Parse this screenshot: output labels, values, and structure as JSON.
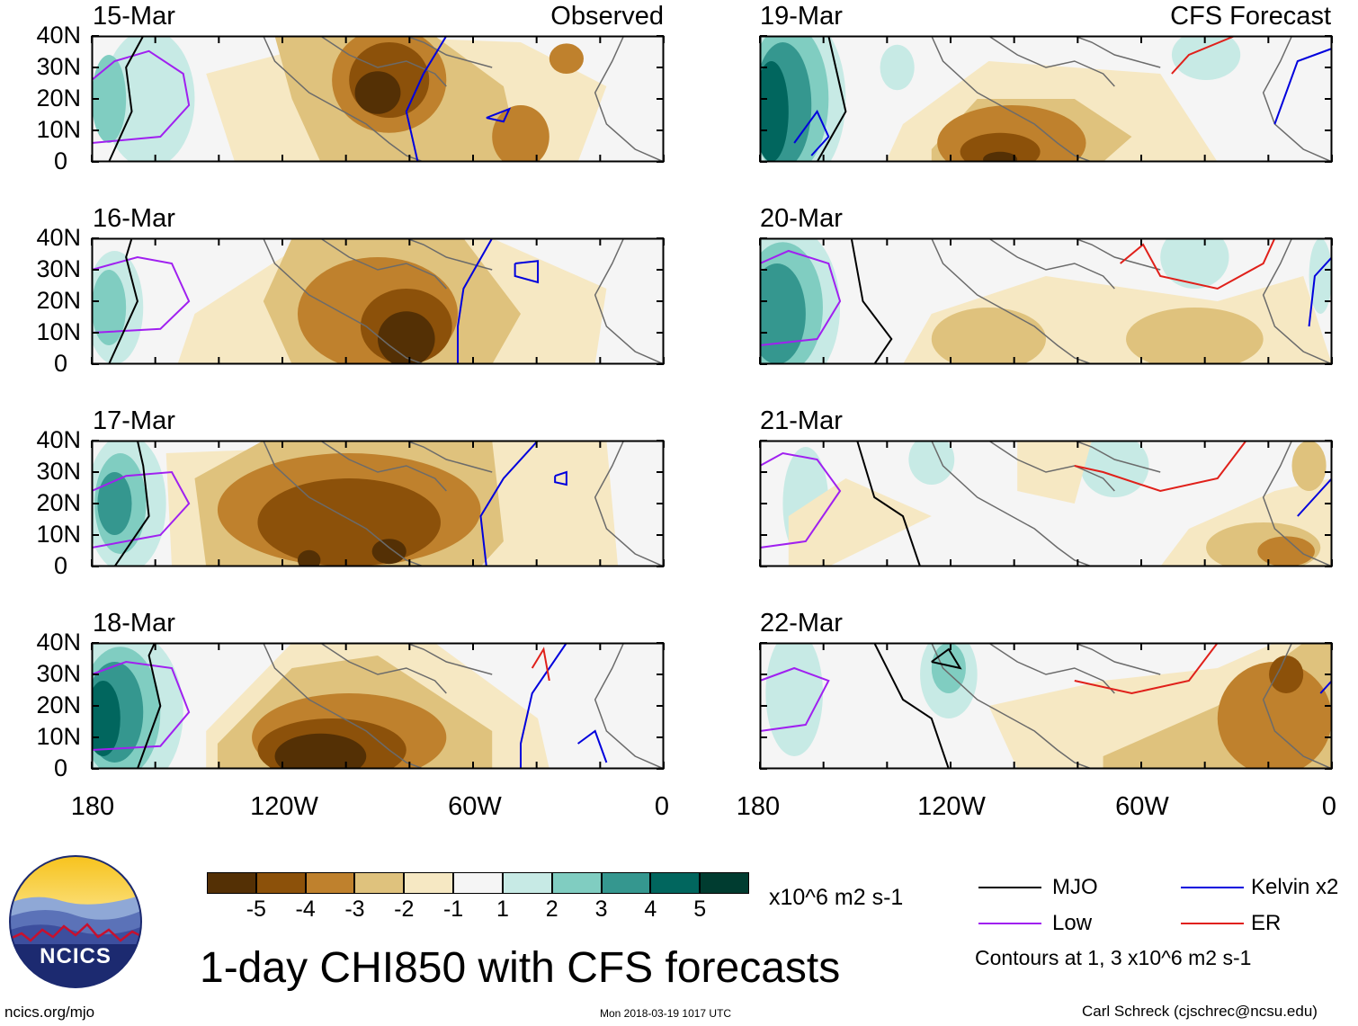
{
  "title": "1-day CHI850 with CFS forecasts",
  "columns": {
    "left_title": "Observed",
    "right_title": "CFS Forecast"
  },
  "panels": [
    {
      "id": "p0",
      "date": "15-Mar",
      "column": "observed"
    },
    {
      "id": "p1",
      "date": "16-Mar",
      "column": "observed"
    },
    {
      "id": "p2",
      "date": "17-Mar",
      "column": "observed"
    },
    {
      "id": "p3",
      "date": "18-Mar",
      "column": "observed"
    },
    {
      "id": "p4",
      "date": "19-Mar",
      "column": "forecast"
    },
    {
      "id": "p5",
      "date": "20-Mar",
      "column": "forecast"
    },
    {
      "id": "p6",
      "date": "21-Mar",
      "column": "forecast"
    },
    {
      "id": "p7",
      "date": "22-Mar",
      "column": "forecast"
    }
  ],
  "axes": {
    "y_ticks": [
      "40N",
      "30N",
      "20N",
      "10N",
      "0"
    ],
    "x_ticks": [
      "180",
      "120W",
      "60W",
      "0"
    ],
    "lat_range": [
      0,
      40
    ],
    "lon_range": [
      -180,
      0
    ]
  },
  "colorbar": {
    "labels": [
      "-5",
      "-4",
      "-3",
      "-2",
      "-1",
      "1",
      "2",
      "3",
      "4",
      "5"
    ],
    "colors": [
      "#543005",
      "#8c510a",
      "#bf812d",
      "#dfc27d",
      "#f6e8c3",
      "#f5f5f5",
      "#c7eae5",
      "#80cdc1",
      "#35978f",
      "#01665e",
      "#003c30"
    ],
    "units": "x10^6 m2 s-1"
  },
  "legend": {
    "items": [
      {
        "label": "MJO",
        "color": "#000000"
      },
      {
        "label": "Kelvin x2",
        "color": "#0000dd"
      },
      {
        "label": "Low",
        "color": "#a020f0"
      },
      {
        "label": "ER",
        "color": "#e0201a"
      }
    ],
    "note": "Contours at 1, 3 x10^6 m2 s-1"
  },
  "footer": {
    "url": "ncics.org/mjo",
    "timestamp": "Mon 2018-03-19 1017 UTC",
    "author": "Carl Schreck (cjschrec@ncsu.edu)",
    "logo_text": "NCICS"
  }
}
